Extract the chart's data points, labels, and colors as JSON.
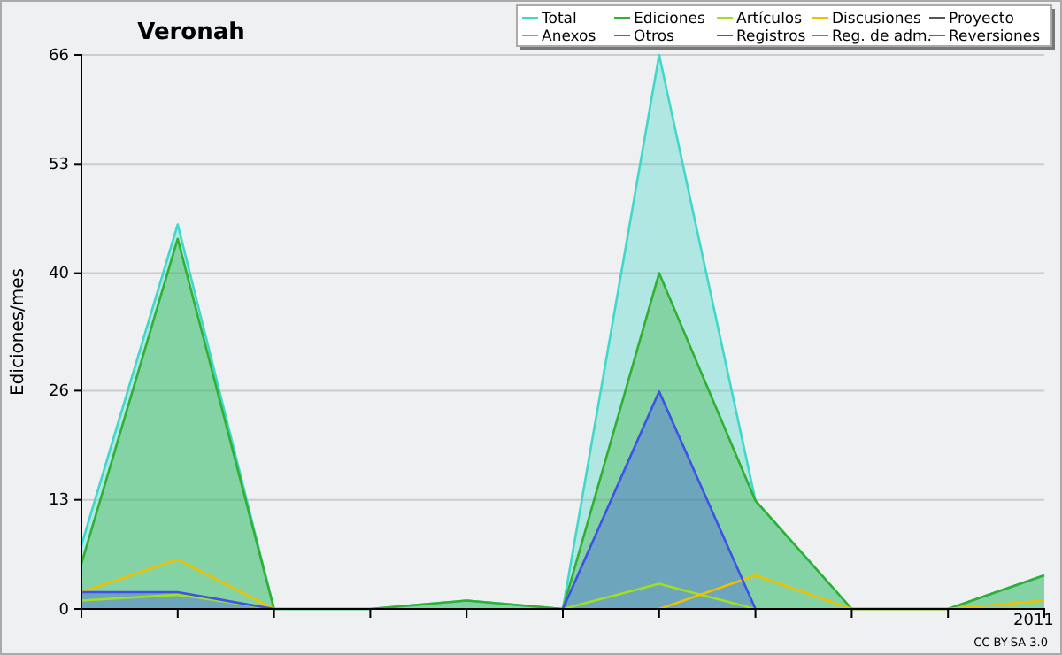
{
  "chart_data": {
    "type": "line",
    "title": "Veronah",
    "ylabel": "Ediciones/mes",
    "categories": [
      null,
      null,
      null,
      null,
      null,
      null,
      null,
      null,
      null,
      null,
      "2011"
    ],
    "ylim": [
      0,
      66
    ],
    "yticks": [
      0,
      13,
      26,
      40,
      53,
      66
    ],
    "grid": "y",
    "legend": "top right",
    "annotations": [
      "CC BY-SA 3.0"
    ],
    "series": [
      {
        "name": "Total",
        "type": "area",
        "color": "#40d8c8",
        "values": [
          7.6,
          45.8,
          0,
          0,
          1,
          0,
          66,
          12.9,
          0,
          0,
          4
        ]
      },
      {
        "name": "Ediciones",
        "type": "area",
        "color": "#30b030",
        "values": [
          5.4,
          44.1,
          0,
          0,
          1,
          0,
          40,
          12.9,
          0,
          0,
          4
        ]
      },
      {
        "name": "Artículos",
        "color": "#a0e020",
        "values": [
          1,
          1.7,
          0,
          null,
          null,
          0,
          3,
          0,
          null,
          null,
          null
        ]
      },
      {
        "name": "Discusiones",
        "color": "#f0c000",
        "values": [
          2,
          5.9,
          0,
          null,
          null,
          null,
          0,
          4,
          0,
          0,
          1
        ]
      },
      {
        "name": "Proyecto",
        "type": "line",
        "color": "#555555",
        "values": [
          null,
          null,
          null,
          null,
          null,
          null,
          null,
          null,
          null,
          null,
          null
        ]
      },
      {
        "name": "Anexos",
        "type": "line",
        "color": "#f08040",
        "values": [
          null,
          null,
          null,
          null,
          null,
          null,
          null,
          null,
          null,
          null,
          null
        ]
      },
      {
        "name": "Otros",
        "type": "line",
        "color": "#8040e0",
        "values": [
          null,
          null,
          null,
          null,
          null,
          null,
          null,
          null,
          null,
          null,
          null
        ]
      },
      {
        "name": "Registros",
        "type": "area",
        "color": "#4050e8",
        "values": [
          2,
          2,
          0,
          null,
          null,
          0,
          25.9,
          0,
          null,
          null,
          null
        ]
      },
      {
        "name": "Reg. de adm.",
        "type": "line",
        "color": "#d040e0",
        "values": [
          null,
          null,
          null,
          null,
          null,
          null,
          null,
          null,
          null,
          null,
          null
        ]
      },
      {
        "name": "Reversiones",
        "type": "line",
        "color": "#e03030",
        "values": [
          null,
          null,
          null,
          null,
          null,
          null,
          null,
          null,
          null,
          null,
          null
        ]
      }
    ]
  }
}
